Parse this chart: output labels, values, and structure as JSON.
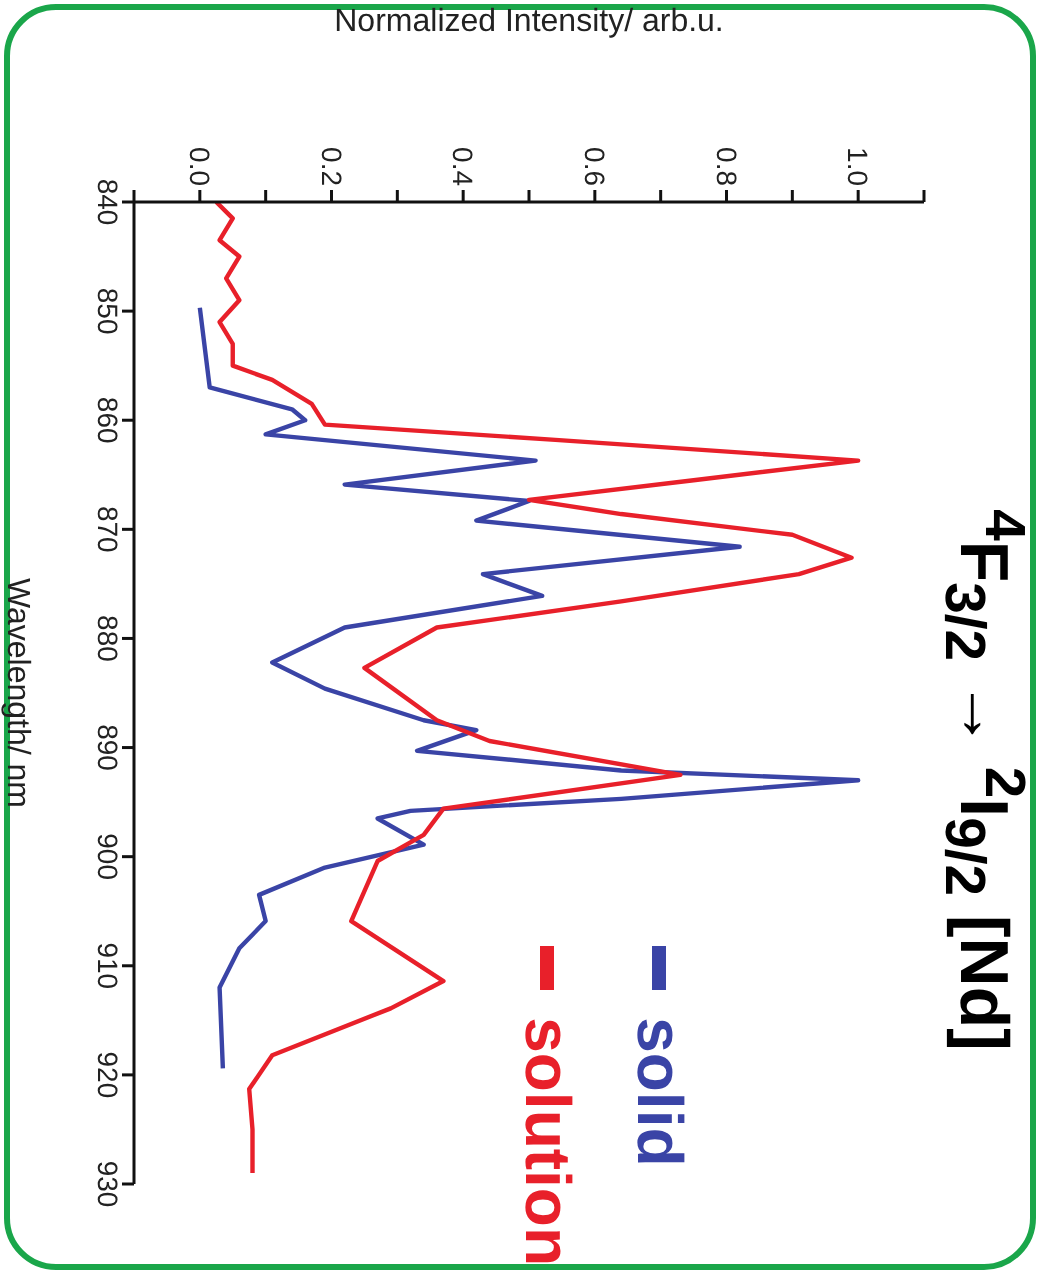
{
  "chart_data": {
    "type": "line",
    "title": "$^{4}$F$_{3/2}$ → $^{2}$I$_{9/2}$ [Nd]",
    "xlabel": "Normalized Intensity/ arb.u.",
    "ylabel": "Wavelength/ nm",
    "ylim": [
      930,
      840
    ],
    "yticks": [
      840,
      850,
      860,
      870,
      880,
      890,
      900,
      910,
      920,
      930
    ],
    "xlim": [
      -0.1,
      1.1
    ],
    "xticks": [
      {
        "value": -0.1,
        "label": null
      },
      {
        "value": 0,
        "label": "0.0"
      },
      {
        "value": 0.1,
        "label": null
      },
      0.2,
      {
        "value": 0.3,
        "label": null
      },
      0.4,
      {
        "value": 0.5,
        "label": null
      },
      0.6,
      {
        "value": 0.7,
        "label": null
      },
      0.8,
      {
        "value": 0.9,
        "label": null
      },
      {
        "value": 1,
        "label": "1.0"
      },
      {
        "value": 1.1,
        "label": null
      }
    ],
    "grid": false,
    "legend": "bottom right",
    "marker": "none",
    "line_style": "solid",
    "series": [
      {
        "name": "solid",
        "color": "#3a44a6",
        "values": [
          849.7,
          857,
          859,
          860,
          861.3,
          863.7,
          865.9,
          867.4,
          869.2,
          871.6,
          874.1,
          876.1,
          879,
          882.2,
          884.6,
          887.5,
          888.4,
          890.3,
          892.1,
          893,
          894.7,
          895.8,
          896.5,
          898.9,
          901,
          903.5,
          905.9,
          908.4,
          912,
          919.4
        ],
        "x": [
          0,
          0.015,
          0.14,
          0.16,
          0.1,
          0.51,
          0.22,
          0.5,
          0.42,
          0.82,
          0.43,
          0.52,
          0.22,
          0.11,
          0.19,
          0.34,
          0.42,
          0.33,
          0.64,
          1,
          0.64,
          0.32,
          0.27,
          0.34,
          0.19,
          0.09,
          0.1,
          0.06,
          0.03,
          0.035
        ]
      },
      {
        "name": "solution",
        "color": "#e8202a",
        "values": [
          840,
          841.5,
          843.5,
          845,
          847,
          849,
          851,
          853,
          855,
          856.3,
          858.5,
          860.4,
          861.8,
          863.7,
          865.5,
          867.3,
          868.6,
          870.5,
          872.6,
          874.1,
          876.6,
          879,
          882.7,
          887.5,
          889.4,
          892.5,
          895.6,
          898,
          900.4,
          905.9,
          911.4,
          913.9,
          918.2,
          921.3,
          925,
          929
        ],
        "x": [
          0.025,
          0.05,
          0.03,
          0.06,
          0.04,
          0.06,
          0.03,
          0.05,
          0.05,
          0.11,
          0.17,
          0.19,
          0.54,
          1,
          0.75,
          0.5,
          0.64,
          0.9,
          0.99,
          0.91,
          0.64,
          0.36,
          0.25,
          0.36,
          0.44,
          0.73,
          0.37,
          0.34,
          0.27,
          0.23,
          0.37,
          0.29,
          0.11,
          0.075,
          0.08,
          0.08
        ]
      }
    ]
  }
}
